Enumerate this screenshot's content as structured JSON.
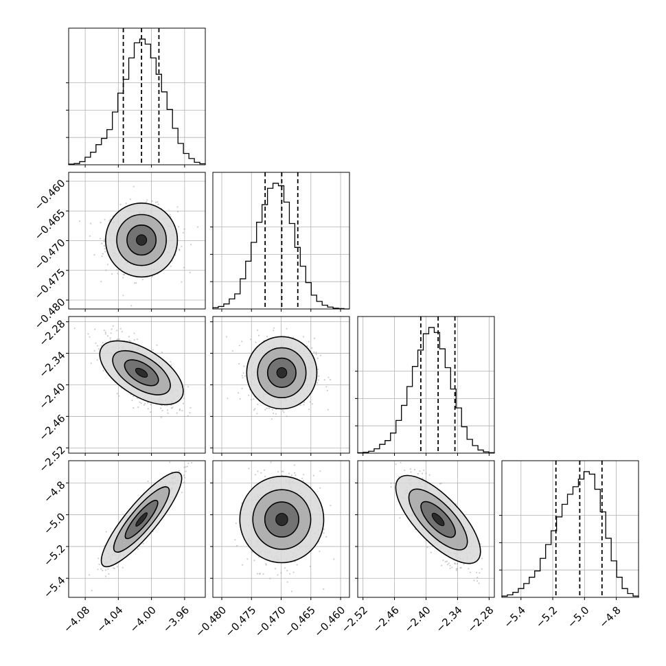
{
  "chart_data": {
    "type": "corner",
    "title": "",
    "parameters": [
      {
        "ticks": [
          -4.08,
          -4.04,
          -4.0,
          -3.96
        ],
        "tick_labels": [
          "−4.08",
          "−4.04",
          "−4.00",
          "−3.96"
        ],
        "range": [
          -4.1,
          -3.935
        ],
        "quantiles": [
          -4.034,
          -4.012,
          -3.991
        ]
      },
      {
        "ticks": [
          -0.48,
          -0.475,
          -0.47,
          -0.465,
          -0.46
        ],
        "tick_labels": [
          "−0.480",
          "−0.475",
          "−0.470",
          "−0.465",
          "−0.460"
        ],
        "range": [
          -0.4815,
          -0.4585
        ],
        "quantiles": [
          -0.4727,
          -0.4699,
          -0.4672
        ]
      },
      {
        "ticks": [
          -2.52,
          -2.46,
          -2.4,
          -2.34,
          -2.28
        ],
        "tick_labels": [
          "−2.52",
          "−2.46",
          "−2.40",
          "−2.34",
          "−2.28"
        ],
        "range": [
          -2.53,
          -2.27
        ],
        "quantiles": [
          -2.41,
          -2.377,
          -2.345
        ]
      },
      {
        "ticks": [
          -5.4,
          -5.2,
          -5.0,
          -4.8
        ],
        "tick_labels": [
          "−5.4",
          "−5.2",
          "−5.0",
          "−4.8"
        ],
        "range": [
          -5.52,
          -4.66
        ],
        "quantiles": [
          -5.18,
          -5.03,
          -4.89
        ]
      }
    ],
    "histograms": [
      [
        0.005,
        0.01,
        0.025,
        0.06,
        0.1,
        0.16,
        0.21,
        0.28,
        0.42,
        0.57,
        0.68,
        0.85,
        0.97,
        1.0,
        0.96,
        0.85,
        0.72,
        0.58,
        0.44,
        0.29,
        0.17,
        0.09,
        0.05,
        0.02,
        0.008
      ],
      [
        0.01,
        0.02,
        0.04,
        0.08,
        0.12,
        0.24,
        0.38,
        0.53,
        0.69,
        0.83,
        0.96,
        1.0,
        0.98,
        0.85,
        0.68,
        0.49,
        0.34,
        0.21,
        0.11,
        0.06,
        0.03,
        0.015,
        0.006,
        0.003,
        0.0
      ],
      [
        0.003,
        0.007,
        0.015,
        0.035,
        0.07,
        0.1,
        0.16,
        0.26,
        0.38,
        0.53,
        0.69,
        0.82,
        0.95,
        1.0,
        0.96,
        0.83,
        0.68,
        0.51,
        0.36,
        0.21,
        0.11,
        0.06,
        0.025,
        0.01,
        0.004
      ],
      [
        0.01,
        0.02,
        0.04,
        0.07,
        0.11,
        0.16,
        0.21,
        0.31,
        0.42,
        0.53,
        0.64,
        0.74,
        0.82,
        0.88,
        0.94,
        1.0,
        0.98,
        0.86,
        0.68,
        0.47,
        0.29,
        0.16,
        0.07,
        0.03,
        0.01
      ]
    ],
    "correlations": [
      [
        1.0,
        0.0,
        -0.66,
        0.93
      ],
      [
        0.0,
        1.0,
        0.0,
        0.0
      ],
      [
        -0.66,
        0.0,
        1.0,
        -0.78
      ],
      [
        0.93,
        0.0,
        -0.78,
        1.0
      ]
    ],
    "grid": true
  }
}
